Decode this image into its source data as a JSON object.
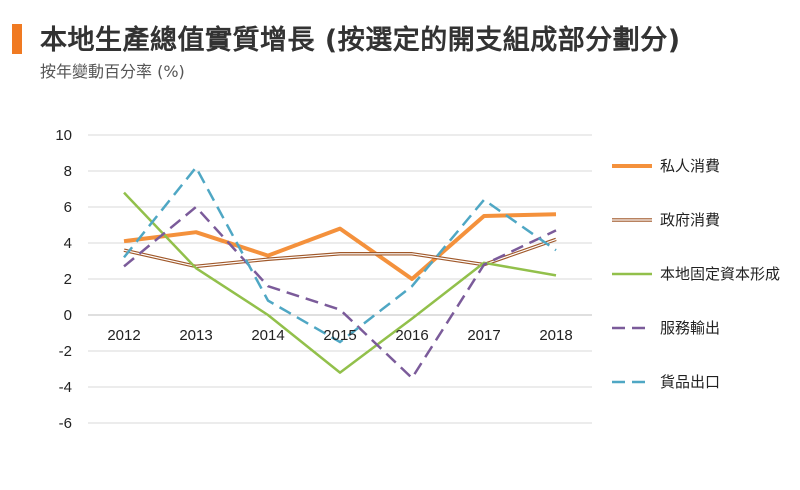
{
  "header": {
    "title": "本地生產總值實質增長 (按選定的開支組成部分劃分)",
    "subtitle": "按年變動百分率 (%)",
    "accent_color": "#f07a22"
  },
  "chart_data": {
    "type": "line",
    "x": [
      "2012",
      "2013",
      "2014",
      "2015",
      "2016",
      "2017",
      "2018"
    ],
    "ylim": [
      -6,
      10
    ],
    "yticks": [
      10,
      8,
      6,
      4,
      2,
      0,
      -2,
      -4,
      -6
    ],
    "grid": true,
    "legend_position": "right",
    "series": [
      {
        "name": "私人消費",
        "values": [
          4.1,
          4.6,
          3.3,
          4.8,
          2.0,
          5.5,
          5.6
        ],
        "color": "#f4913c",
        "style": "thick"
      },
      {
        "name": "政府消費",
        "values": [
          3.6,
          2.7,
          3.1,
          3.4,
          3.4,
          2.8,
          4.2
        ],
        "color": "#a0582a",
        "style": "double"
      },
      {
        "name": "本地固定資本形成",
        "values": [
          6.8,
          2.6,
          0.0,
          -3.2,
          -0.2,
          2.9,
          2.2
        ],
        "color": "#92c04b",
        "style": "solid"
      },
      {
        "name": "服務輸出",
        "values": [
          2.7,
          6.0,
          1.6,
          0.3,
          -3.5,
          2.8,
          4.7
        ],
        "color": "#7b5b9a",
        "style": "dashed"
      },
      {
        "name": "貨品出口",
        "values": [
          3.2,
          8.2,
          0.8,
          -1.5,
          1.6,
          6.4,
          3.6
        ],
        "color": "#4fa7c4",
        "style": "dashed"
      }
    ]
  }
}
